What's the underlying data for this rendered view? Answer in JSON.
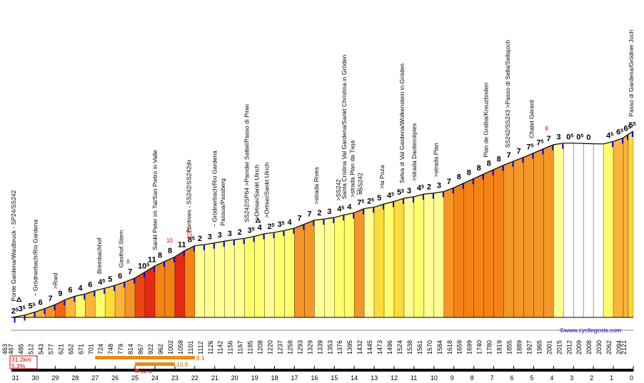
{
  "colors": {
    "c0": "#ffffff",
    "c1": "#ffffbe",
    "c2": "#ffff96",
    "c3": "#ffff6e",
    "c4": "#ffdc3c",
    "c5": "#ffb43c",
    "c6": "#f59628",
    "c7": "#f58214",
    "c8": "#f06414",
    "c9": "#eb4614",
    "c10": "#e62814",
    "marker": "#0000ff",
    "km_bar": "#e88c1a",
    "km_bar2": "#ff1e00"
  },
  "credit": "©www.cyclingcols.com",
  "summary": {
    "distance": "31.2km",
    "avg_grade": "5.3%"
  },
  "legend_bars": [
    {
      "label": "8.1",
      "from_km": 27,
      "to_km": 22,
      "color": "#e88c1a"
    },
    {
      "label": "10.8",
      "from_km": 25,
      "to_km": 23,
      "color": "#e88c1a"
    },
    {
      "label": "12.1",
      "from_km": 25,
      "to_km": 24.8,
      "color": "#ff1e00"
    }
  ],
  "chart_data": {
    "type": "area",
    "title": "",
    "xlabel": "",
    "ylabel": "",
    "x_axis": "km to summit (descending)",
    "x_ticks": [
      31,
      30,
      29,
      28,
      27,
      26,
      25,
      24,
      23,
      22,
      21,
      20,
      19,
      18,
      17,
      16,
      15,
      14,
      13,
      12,
      11,
      10,
      9,
      8,
      7,
      6,
      5,
      4,
      3,
      2,
      1,
      0
    ],
    "ylim": [
      463,
      2121
    ],
    "segments": [
      {
        "km_from": 31.2,
        "km_to": 31,
        "alt_start": 463,
        "alt_end": 467,
        "grade": "2",
        "half": true,
        "cls": "c2"
      },
      {
        "km_from": 31,
        "km_to": 30.5,
        "alt_start": 467,
        "alt_end": 485,
        "grade": "3",
        "half": true,
        "cls": "c3"
      },
      {
        "km_from": 30.5,
        "km_to": 30,
        "alt_start": 485,
        "alt_end": 512,
        "grade": "5",
        "half": true,
        "cls": "c4"
      },
      {
        "km_from": 30,
        "km_to": 29.5,
        "alt_start": 512,
        "alt_end": 543,
        "grade": "6",
        "cls": "c5"
      },
      {
        "km_from": 29.5,
        "km_to": 29,
        "alt_start": 543,
        "alt_end": 577,
        "grade": "7",
        "cls": "c6"
      },
      {
        "km_from": 29,
        "km_to": 28.5,
        "alt_start": 577,
        "alt_end": 621,
        "grade": "9",
        "cls": "c8"
      },
      {
        "km_from": 28.5,
        "km_to": 28,
        "alt_start": 621,
        "alt_end": 652,
        "grade": "6",
        "cls": "c5"
      },
      {
        "km_from": 28,
        "km_to": 27.5,
        "alt_start": 652,
        "alt_end": 671,
        "grade": "4",
        "cls": "c3"
      },
      {
        "km_from": 27.5,
        "km_to": 27,
        "alt_start": 671,
        "alt_end": 701,
        "grade": "6",
        "cls": "c5"
      },
      {
        "km_from": 27,
        "km_to": 26.5,
        "alt_start": 701,
        "alt_end": 724,
        "grade": "4",
        "half": true,
        "cls": "c3"
      },
      {
        "km_from": 26.5,
        "km_to": 26,
        "alt_start": 724,
        "alt_end": 748,
        "grade": "5",
        "cls": "c4"
      },
      {
        "km_from": 26,
        "km_to": 25.5,
        "alt_start": 748,
        "alt_end": 779,
        "grade": "6",
        "cls": "c5"
      },
      {
        "km_from": 25.5,
        "km_to": 25,
        "alt_start": 779,
        "alt_end": 814,
        "grade": "7",
        "red": "8",
        "cls": "c6"
      },
      {
        "km_from": 25,
        "km_to": 24.5,
        "alt_start": 814,
        "alt_end": 867,
        "grade": "10",
        "half": true,
        "cls": "c9"
      },
      {
        "km_from": 24.5,
        "km_to": 24,
        "alt_start": 867,
        "alt_end": 922,
        "grade": "11",
        "cls": "c10"
      },
      {
        "km_from": 24,
        "km_to": 23.5,
        "alt_start": 922,
        "alt_end": 962,
        "grade": "8",
        "cls": "c7"
      },
      {
        "km_from": 23.5,
        "km_to": 23,
        "alt_start": 962,
        "alt_end": 1002,
        "grade": "8",
        "red": "10",
        "cls": "c7"
      },
      {
        "km_from": 23,
        "km_to": 22.5,
        "alt_start": 1002,
        "alt_end": 1058,
        "grade": "11",
        "cls": "c10"
      },
      {
        "km_from": 22.5,
        "km_to": 22,
        "alt_start": 1058,
        "alt_end": 1101,
        "grade": "8",
        "half": true,
        "red": "11 12",
        "cls": "c7"
      },
      {
        "km_from": 22,
        "km_to": 21.5,
        "alt_start": 1101,
        "alt_end": 1112,
        "grade": "2",
        "cls": "c2"
      },
      {
        "km_from": 21.5,
        "km_to": 21,
        "alt_start": 1112,
        "alt_end": 1126,
        "grade": "3",
        "cls": "c2"
      },
      {
        "km_from": 21,
        "km_to": 20.5,
        "alt_start": 1126,
        "alt_end": 1142,
        "grade": "3",
        "cls": "c2"
      },
      {
        "km_from": 20.5,
        "km_to": 20,
        "alt_start": 1142,
        "alt_end": 1156,
        "grade": "3",
        "cls": "c2"
      },
      {
        "km_from": 20,
        "km_to": 19.5,
        "alt_start": 1156,
        "alt_end": 1167,
        "grade": "2",
        "cls": "c2"
      },
      {
        "km_from": 19.5,
        "km_to": 19,
        "alt_start": 1167,
        "alt_end": 1185,
        "grade": "3",
        "half": true,
        "cls": "c3"
      },
      {
        "km_from": 19,
        "km_to": 18.5,
        "alt_start": 1185,
        "alt_end": 1208,
        "grade": "4",
        "cls": "c3"
      },
      {
        "km_from": 18.5,
        "km_to": 18,
        "alt_start": 1208,
        "alt_end": 1220,
        "grade": "2",
        "half": true,
        "cls": "c2"
      },
      {
        "km_from": 18,
        "km_to": 17.5,
        "alt_start": 1220,
        "alt_end": 1237,
        "grade": "3",
        "half": true,
        "cls": "c3"
      },
      {
        "km_from": 17.5,
        "km_to": 17,
        "alt_start": 1237,
        "alt_end": 1258,
        "grade": "4",
        "cls": "c3"
      },
      {
        "km_from": 17,
        "km_to": 16.5,
        "alt_start": 1258,
        "alt_end": 1293,
        "grade": "7",
        "cls": "c6"
      },
      {
        "km_from": 16.5,
        "km_to": 16,
        "alt_start": 1293,
        "alt_end": 1329,
        "grade": "7",
        "cls": "c6"
      },
      {
        "km_from": 16,
        "km_to": 15.5,
        "alt_start": 1329,
        "alt_end": 1339,
        "grade": "2",
        "cls": "c2"
      },
      {
        "km_from": 15.5,
        "km_to": 15,
        "alt_start": 1339,
        "alt_end": 1353,
        "grade": "3",
        "cls": "c2"
      },
      {
        "km_from": 15,
        "km_to": 14.5,
        "alt_start": 1353,
        "alt_end": 1376,
        "grade": "4",
        "half": true,
        "cls": "c3"
      },
      {
        "km_from": 14.5,
        "km_to": 14,
        "alt_start": 1376,
        "alt_end": 1395,
        "grade": "4",
        "cls": "c3"
      },
      {
        "km_from": 14,
        "km_to": 13.5,
        "alt_start": 1395,
        "alt_end": 1432,
        "grade": "7",
        "half": true,
        "red": "10",
        "cls": "c6"
      },
      {
        "km_from": 13.5,
        "km_to": 13,
        "alt_start": 1432,
        "alt_end": 1445,
        "grade": "2",
        "half": true,
        "cls": "c2"
      },
      {
        "km_from": 13,
        "km_to": 12.5,
        "alt_start": 1445,
        "alt_end": 1473,
        "grade": "5",
        "cls": "c4"
      },
      {
        "km_from": 12.5,
        "km_to": 12,
        "alt_start": 1473,
        "alt_end": 1496,
        "grade": "4",
        "half": true,
        "cls": "c3"
      },
      {
        "km_from": 12,
        "km_to": 11.5,
        "alt_start": 1496,
        "alt_end": 1524,
        "grade": "5",
        "half": true,
        "cls": "c4"
      },
      {
        "km_from": 11.5,
        "km_to": 11,
        "alt_start": 1524,
        "alt_end": 1538,
        "grade": "3",
        "cls": "c2"
      },
      {
        "km_from": 11,
        "km_to": 10.5,
        "alt_start": 1538,
        "alt_end": 1561,
        "grade": "4",
        "half": true,
        "cls": "c3"
      },
      {
        "km_from": 10.5,
        "km_to": 10,
        "alt_start": 1561,
        "alt_end": 1570,
        "grade": "2",
        "cls": "c2"
      },
      {
        "km_from": 10,
        "km_to": 9.5,
        "alt_start": 1570,
        "alt_end": 1584,
        "grade": "3",
        "cls": "c2"
      },
      {
        "km_from": 9.5,
        "km_to": 9,
        "alt_start": 1584,
        "alt_end": 1618,
        "grade": "7",
        "cls": "c6"
      },
      {
        "km_from": 9,
        "km_to": 8.5,
        "alt_start": 1618,
        "alt_end": 1659,
        "grade": "8",
        "cls": "c7"
      },
      {
        "km_from": 8.5,
        "km_to": 8,
        "alt_start": 1659,
        "alt_end": 1699,
        "grade": "8",
        "cls": "c7"
      },
      {
        "km_from": 8,
        "km_to": 7.5,
        "alt_start": 1699,
        "alt_end": 1740,
        "grade": "8",
        "cls": "c7"
      },
      {
        "km_from": 7.5,
        "km_to": 7,
        "alt_start": 1740,
        "alt_end": 1780,
        "grade": "8",
        "cls": "c7"
      },
      {
        "km_from": 7,
        "km_to": 6.5,
        "alt_start": 1780,
        "alt_end": 1819,
        "grade": "8",
        "cls": "c7"
      },
      {
        "km_from": 6.5,
        "km_to": 6,
        "alt_start": 1819,
        "alt_end": 1855,
        "grade": "7",
        "cls": "c6"
      },
      {
        "km_from": 6,
        "km_to": 5.5,
        "alt_start": 1855,
        "alt_end": 1889,
        "grade": "7",
        "cls": "c6"
      },
      {
        "km_from": 5.5,
        "km_to": 5,
        "alt_start": 1889,
        "alt_end": 1927,
        "grade": "7",
        "half": true,
        "cls": "c6"
      },
      {
        "km_from": 5,
        "km_to": 4.5,
        "alt_start": 1927,
        "alt_end": 1965,
        "grade": "7",
        "half": true,
        "cls": "c6"
      },
      {
        "km_from": 4.5,
        "km_to": 4,
        "alt_start": 1965,
        "alt_end": 2001,
        "grade": "7",
        "red": "8",
        "cls": "c6"
      },
      {
        "km_from": 4,
        "km_to": 3.5,
        "alt_start": 2001,
        "alt_end": 2015,
        "grade": "3",
        "cls": "c2"
      },
      {
        "km_from": 3.5,
        "km_to": 3,
        "alt_start": 2015,
        "alt_end": 2015,
        "grade": "0",
        "half": true,
        "cls": "c0"
      },
      {
        "km_from": 3,
        "km_to": 2.5,
        "alt_start": 2015,
        "alt_end": 2012,
        "grade": "0",
        "half": true,
        "cls": "c0"
      },
      {
        "km_from": 2.5,
        "km_to": 2,
        "alt_start": 2012,
        "alt_end": 2009,
        "grade": "0",
        "cls": "c0"
      },
      {
        "km_from": 2,
        "km_to": 1.5,
        "alt_start": 2009,
        "alt_end": 2008,
        "grade": "",
        "cls": "c0"
      },
      {
        "km_from": 1.5,
        "km_to": 1,
        "alt_start": 2008,
        "alt_end": 2030,
        "grade": "4",
        "half": true,
        "cls": "c3"
      },
      {
        "km_from": 1,
        "km_to": 0.5,
        "alt_start": 2030,
        "alt_end": 2062,
        "grade": "6",
        "half": true,
        "cls": "c5"
      },
      {
        "km_from": 0.5,
        "km_to": 0.25,
        "alt_start": 2062,
        "alt_end": 2094,
        "grade": "6",
        "half": true,
        "cls": "c5"
      },
      {
        "km_from": 0.25,
        "km_to": 0,
        "alt_start": 2094,
        "alt_end": 2121,
        "grade": "5",
        "half": true,
        "cls": "c4"
      }
    ],
    "altitudes": [
      "463",
      "467",
      "485",
      "512",
      "543",
      "577",
      "621",
      "652",
      "671",
      "701",
      "724",
      "748",
      "779",
      "814",
      "867",
      "922",
      "962",
      "1002",
      "1058",
      "1101",
      "1112",
      "1126",
      "1142",
      "1156",
      "1167",
      "1185",
      "1208",
      "1220",
      "1237",
      "1258",
      "1293",
      "1329",
      "1339",
      "1353",
      "1376",
      "1395",
      "1432",
      "1445",
      "1473",
      "1496",
      "1524",
      "1538",
      "1561",
      "1570",
      "1584",
      "1618",
      "1659",
      "1699",
      "1740",
      "1780",
      "1819",
      "1855",
      "1889",
      "1927",
      "1965",
      "2001",
      "2015",
      "2012",
      "2009",
      "2008",
      "2030",
      "2062",
      "2094",
      "2121"
    ],
    "places": [
      {
        "km": 31.1,
        "text": "Ponte Gardena/Waidbruck - SP24/SS242"
      },
      {
        "km": 30,
        "text": "~ Grödnerbach/Rio Gardena"
      },
      {
        "km": 29,
        "text": ">Ried"
      },
      {
        "km": 26.8,
        "text": "Brembachhof"
      },
      {
        "km": 25.7,
        "text": "Gasthof Stern"
      },
      {
        "km": 24,
        "text": "Sankt Peter im Tal/San Pietro in Valle"
      },
      {
        "km": 22.3,
        "text": "Pontives - SS242/SS242dir"
      },
      {
        "km": 21,
        "text": "~ Grödnerbach/Rio Gardena"
      },
      {
        "km": 20.6,
        "text": "Passua/Passberg"
      },
      {
        "km": 19.4,
        "text": "SS242/SP64 >Panider Sattel/Passo di Pinei"
      },
      {
        "km": 18.9,
        "text": ">Ortisei/Sankt Ulrich"
      },
      {
        "km": 18.4,
        "text": ">Ortisei/Sankt Ulrich"
      },
      {
        "km": 15.9,
        "text": ">strada Rives"
      },
      {
        "km": 14.8,
        "text": ">SS242"
      },
      {
        "km": 14.5,
        "text": "Santa Cristina Val Gardena/Sankt Christina in Gröden"
      },
      {
        "km": 14.1,
        "text": ">strada Plan da Tieja"
      },
      {
        "km": 13.7,
        "text": ">SS242"
      },
      {
        "km": 12.6,
        "text": ">la Poza"
      },
      {
        "km": 11.6,
        "text": "Selva di Val Gardena/Wolkenstein in Gröden"
      },
      {
        "km": 11,
        "text": ">strada Dantercëpies"
      },
      {
        "km": 9.9,
        "text": ">strada Plan"
      },
      {
        "km": 7.4,
        "text": "Plan de Gralba/Kreuzboden"
      },
      {
        "km": 6.3,
        "text": "SS242/SS243 >Passo di Sella/Sellajoch"
      },
      {
        "km": 5.1,
        "text": "Chalet Gérard"
      },
      {
        "km": 0.1,
        "text": "Passo di Gardena/Grödner Joch"
      }
    ],
    "icons": [
      {
        "km": 31,
        "name": "delta-icon"
      },
      {
        "km": 19,
        "name": "delta-icon"
      }
    ]
  }
}
